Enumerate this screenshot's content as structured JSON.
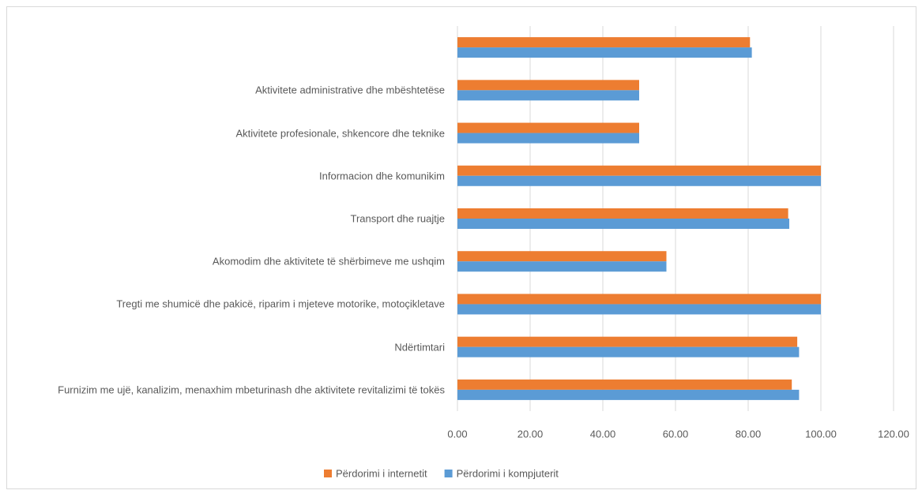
{
  "chart_data": {
    "type": "hbar",
    "categories": [
      null,
      "Aktivitete administrative dhe mbështetëse",
      "Aktivitete profesionale, shkencore dhe teknike",
      "Informacion dhe komunikim",
      "Transport dhe ruajtje",
      "Akomodim dhe aktivitete të shërbimeve me ushqim",
      "Tregti me shumicë dhe pakicë, riparim i mjeteve motorike, motoçikletave",
      "Ndërtimtari",
      "Furnizim me ujë, kanalizim, menaxhim mbeturinash dhe aktivitete revitalizimi të tokës"
    ],
    "series": [
      {
        "name": "Përdorimi i internetit",
        "color": "#ed7d31",
        "values": [
          80.5,
          50,
          50,
          100,
          91,
          57.5,
          100,
          93.5,
          92
        ]
      },
      {
        "name": "Përdorimi i kompjuterit",
        "color": "#5b9bd5",
        "values": [
          81,
          50,
          50,
          100,
          91.3,
          57.5,
          100,
          94,
          94
        ]
      }
    ],
    "xlim": [
      0,
      120
    ],
    "xticks": [
      {
        "value": 0,
        "label": "0.00"
      },
      {
        "value": 20,
        "label": "20.00"
      },
      {
        "value": 40,
        "label": "40.00"
      },
      {
        "value": 60,
        "label": "60.00"
      },
      {
        "value": 80,
        "label": "80.00"
      },
      {
        "value": 100,
        "label": "100.00"
      },
      {
        "value": 120,
        "label": "120.00"
      }
    ],
    "grid": true,
    "legend": "bottom"
  }
}
